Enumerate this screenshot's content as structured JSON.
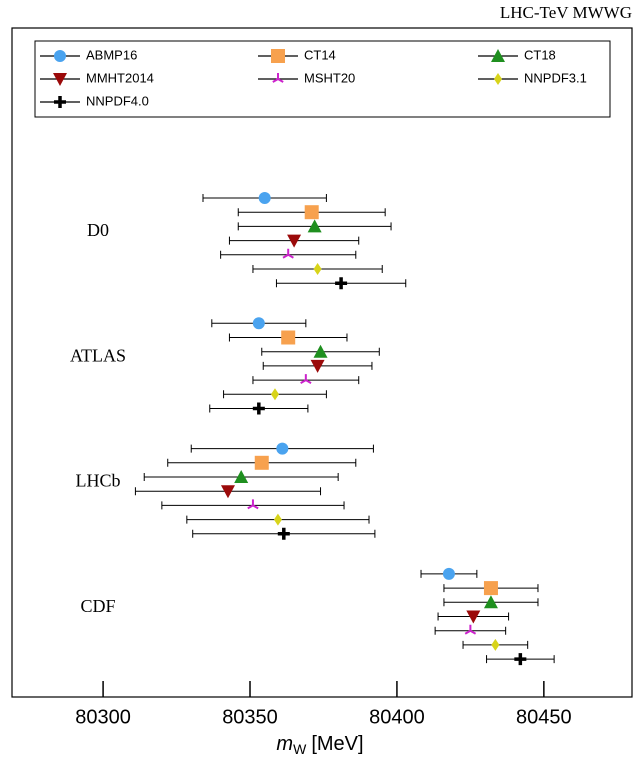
{
  "chart_data": {
    "type": "errorbar",
    "title": "LHC-TeV MWWG",
    "xlabel": {
      "symbol": "m",
      "subscript": "W",
      "unit": "[MeV]"
    },
    "categories": [
      "D0",
      "ATLAS",
      "LHCb",
      "CDF"
    ],
    "series": [
      {
        "name": "ABMP16",
        "color": "#4aa3ef",
        "marker": "circle",
        "values": [
          80355,
          80353,
          80361,
          80417.7
        ],
        "errors": [
          21,
          16,
          31,
          9.5
        ]
      },
      {
        "name": "CT14",
        "color": "#f7a14e",
        "marker": "square",
        "values": [
          80371,
          80363,
          80354,
          80432
        ],
        "errors": [
          25,
          20,
          32,
          16
        ]
      },
      {
        "name": "CT18",
        "color": "#1f8f1f",
        "marker": "triangle-up",
        "values": [
          80372,
          80374,
          80347,
          80432
        ],
        "errors": [
          26,
          20,
          33,
          16
        ]
      },
      {
        "name": "MMHT2014",
        "color": "#9b0a0a",
        "marker": "triangle-down",
        "values": [
          80365,
          80373,
          80342.5,
          80426
        ],
        "errors": [
          22,
          18.5,
          31.5,
          12
        ]
      },
      {
        "name": "MSHT20",
        "color": "#cc22cc",
        "marker": "star",
        "values": [
          80363,
          80369,
          80351,
          80425
        ],
        "errors": [
          23,
          18,
          31,
          12
        ]
      },
      {
        "name": "NNPDF3.1",
        "color": "#d8d41a",
        "marker": "diamond",
        "values": [
          80373,
          80358.5,
          80359.5,
          80433.5
        ],
        "errors": [
          22,
          17.5,
          31,
          11
        ]
      },
      {
        "name": "NNPDF4.0",
        "color": "#000000",
        "marker": "plus",
        "values": [
          80381,
          80353,
          80361.5,
          80442
        ],
        "errors": [
          22,
          16.7,
          31,
          11.5
        ]
      }
    ],
    "xlim": [
      80269,
      80480
    ],
    "xticks": [
      80300,
      80350,
      80400,
      80450
    ],
    "grid": false
  }
}
